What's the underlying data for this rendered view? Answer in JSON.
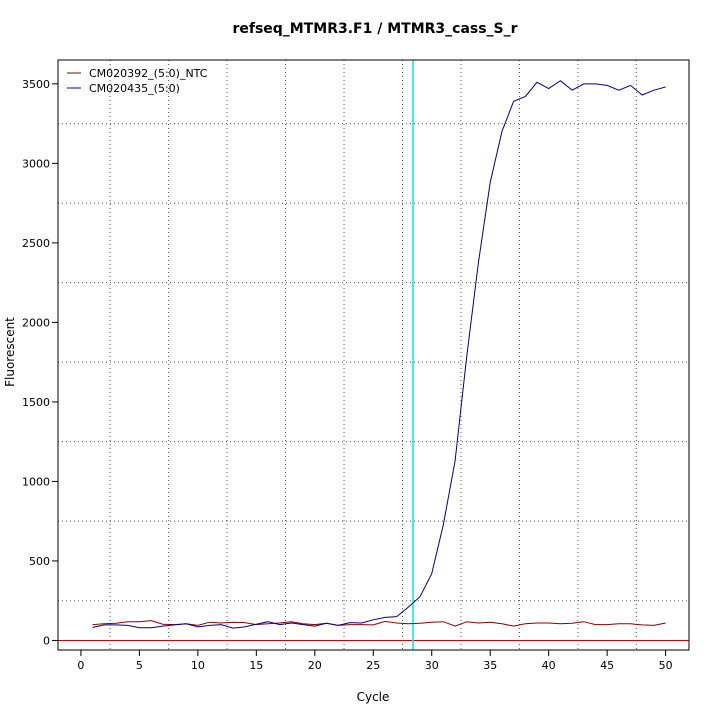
{
  "chart_data": {
    "type": "line",
    "title": "refseq_MTMR3.F1 / MTMR3_cass_S_r",
    "xlabel": "Cycle",
    "ylabel": "Fluorescent",
    "xlim": [
      -1.96,
      52
    ],
    "ylim": [
      -60,
      3650
    ],
    "x_ticks": [
      0,
      5,
      10,
      15,
      20,
      25,
      30,
      35,
      40,
      45,
      50
    ],
    "y_ticks": [
      0,
      500,
      1000,
      1500,
      2000,
      2500,
      3000,
      3500
    ],
    "grid": true,
    "legend_position": "top-left",
    "threshold_cycle": 28.4,
    "threshold_color": "#00e5ff",
    "baseline_value": 0,
    "baseline_color": "#cc0000",
    "x": [
      1,
      2,
      3,
      4,
      5,
      6,
      7,
      8,
      9,
      10,
      11,
      12,
      13,
      14,
      15,
      16,
      17,
      18,
      19,
      20,
      21,
      22,
      23,
      24,
      25,
      26,
      27,
      28,
      29,
      30,
      31,
      32,
      33,
      34,
      35,
      36,
      37,
      38,
      39,
      40,
      41,
      42,
      43,
      44,
      45,
      46,
      47,
      48,
      49,
      50
    ],
    "series": [
      {
        "name": "CM020392_(5:0)_NTC",
        "color": "#8b0000",
        "values": [
          100,
          105,
          108,
          118,
          118,
          125,
          102,
          100,
          105,
          95,
          115,
          110,
          115,
          112,
          100,
          105,
          110,
          118,
          105,
          100,
          108,
          95,
          100,
          100,
          98,
          120,
          110,
          105,
          108,
          115,
          118,
          90,
          118,
          110,
          115,
          105,
          90,
          105,
          110,
          110,
          105,
          108,
          118,
          100,
          100,
          105,
          105,
          98,
          95,
          110
        ]
      },
      {
        "name": "CM020435_(5:0)",
        "color": "#00008b",
        "values": [
          82,
          98,
          98,
          95,
          80,
          80,
          90,
          98,
          105,
          85,
          95,
          100,
          78,
          85,
          102,
          118,
          100,
          110,
          100,
          90,
          108,
          95,
          112,
          110,
          130,
          145,
          150,
          210,
          275,
          420,
          730,
          1130,
          1790,
          2380,
          2880,
          3200,
          3390,
          3420,
          3510,
          3470,
          3520,
          3460,
          3500,
          3500,
          3490,
          3460,
          3490,
          3430,
          3460,
          3480
        ]
      }
    ]
  }
}
